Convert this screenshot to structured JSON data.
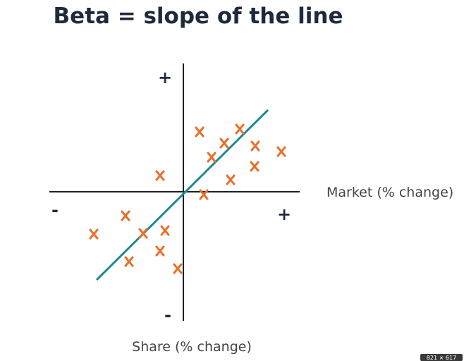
{
  "title": "Beta = slope of the line",
  "axes": {
    "y_plus": "+",
    "x_minus": "-",
    "x_plus": "+",
    "y_minus": "-",
    "x_label": "Market (% change)",
    "y_label": "Share (% change)"
  },
  "badge": "821 × 617"
}
